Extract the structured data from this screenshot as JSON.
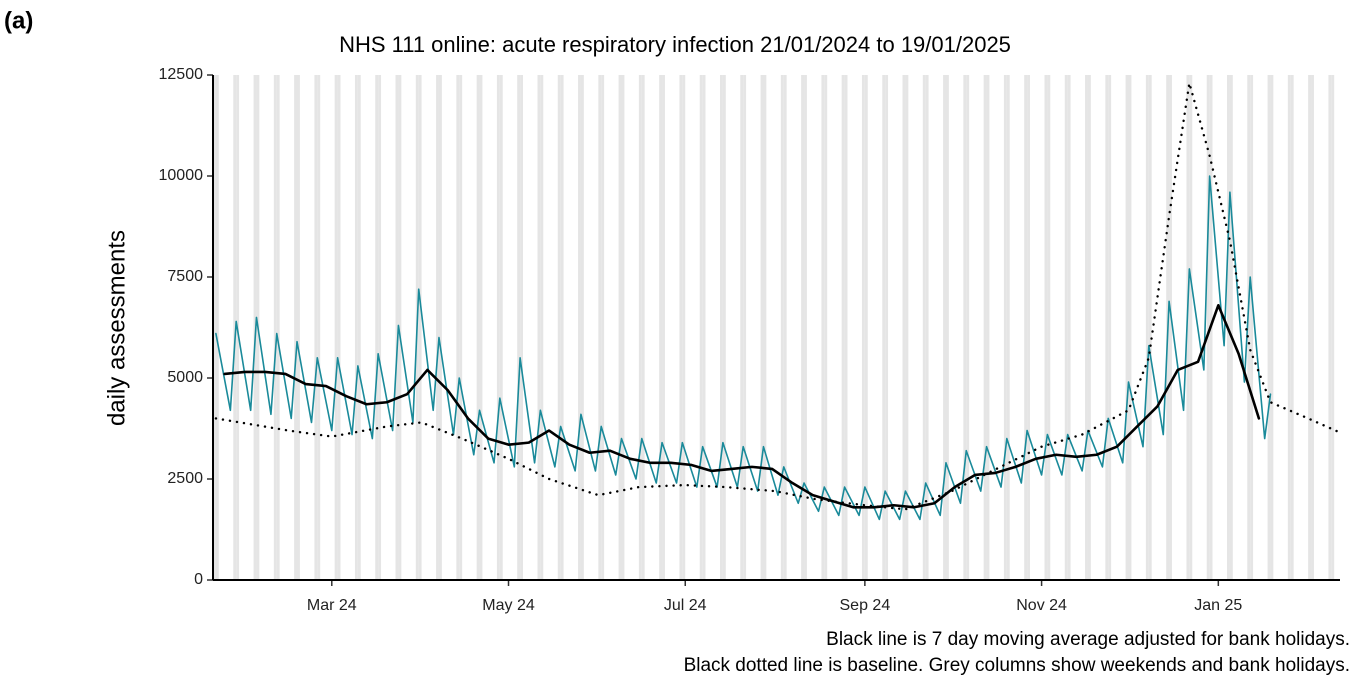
{
  "chart_data": {
    "type": "line",
    "panel_label": "(a)",
    "title": "NHS 111 online: acute respiratory infection 21/01/2024 to 19/01/2025",
    "ylabel": "daily assessments",
    "notes": [
      "Black line is 7 day moving average adjusted for bank holidays.",
      "Black dotted line is baseline. Grey columns show weekends and bank holidays."
    ],
    "xlim": [
      "2024-01-20",
      "2025-02-12"
    ],
    "xticks": [
      {
        "value": "2024-03-01",
        "label": "Mar 24"
      },
      {
        "value": "2024-05-01",
        "label": "May 24"
      },
      {
        "value": "2024-07-01",
        "label": "Jul 24"
      },
      {
        "value": "2024-09-01",
        "label": "Sep 24"
      },
      {
        "value": "2024-11-01",
        "label": "Nov 24"
      },
      {
        "value": "2025-01-01",
        "label": "Jan 25"
      }
    ],
    "ylim": [
      0,
      12500
    ],
    "yticks": [
      0,
      2500,
      5000,
      7500,
      10000,
      12500
    ],
    "grid": false,
    "weekend_color": "#e5e5e5",
    "series": [
      {
        "color": "#1a8a9a",
        "style": "solid",
        "width": 1.6,
        "x": [
          "2024-01-21",
          "2024-01-26",
          "2024-01-28",
          "2024-02-02",
          "2024-02-04",
          "2024-02-09",
          "2024-02-11",
          "2024-02-16",
          "2024-02-18",
          "2024-02-23",
          "2024-02-25",
          "2024-03-01",
          "2024-03-03",
          "2024-03-08",
          "2024-03-10",
          "2024-03-15",
          "2024-03-17",
          "2024-03-22",
          "2024-03-24",
          "2024-03-29",
          "2024-03-31",
          "2024-04-05",
          "2024-04-07",
          "2024-04-12",
          "2024-04-14",
          "2024-04-19",
          "2024-04-21",
          "2024-04-26",
          "2024-04-28",
          "2024-05-03",
          "2024-05-05",
          "2024-05-10",
          "2024-05-12",
          "2024-05-17",
          "2024-05-19",
          "2024-05-24",
          "2024-05-26",
          "2024-05-31",
          "2024-06-02",
          "2024-06-07",
          "2024-06-09",
          "2024-06-14",
          "2024-06-16",
          "2024-06-21",
          "2024-06-23",
          "2024-06-28",
          "2024-06-30",
          "2024-07-05",
          "2024-07-07",
          "2024-07-12",
          "2024-07-14",
          "2024-07-19",
          "2024-07-21",
          "2024-07-26",
          "2024-07-28",
          "2024-08-02",
          "2024-08-04",
          "2024-08-09",
          "2024-08-11",
          "2024-08-16",
          "2024-08-18",
          "2024-08-23",
          "2024-08-25",
          "2024-08-30",
          "2024-09-01",
          "2024-09-06",
          "2024-09-08",
          "2024-09-13",
          "2024-09-15",
          "2024-09-20",
          "2024-09-22",
          "2024-09-27",
          "2024-09-29",
          "2024-10-04",
          "2024-10-06",
          "2024-10-11",
          "2024-10-13",
          "2024-10-18",
          "2024-10-20",
          "2024-10-25",
          "2024-10-27",
          "2024-11-01",
          "2024-11-03",
          "2024-11-08",
          "2024-11-10",
          "2024-11-15",
          "2024-11-17",
          "2024-11-22",
          "2024-11-24",
          "2024-11-29",
          "2024-12-01",
          "2024-12-06",
          "2024-12-08",
          "2024-12-13",
          "2024-12-15",
          "2024-12-20",
          "2024-12-22",
          "2024-12-27",
          "2024-12-29",
          "2025-01-03",
          "2025-01-05",
          "2025-01-10",
          "2025-01-12",
          "2025-01-17",
          "2025-01-19"
        ],
        "values": [
          6100,
          4200,
          6400,
          4200,
          6500,
          4100,
          6100,
          4000,
          5900,
          3900,
          5500,
          3700,
          5500,
          3600,
          5300,
          3500,
          5600,
          3700,
          6300,
          3900,
          7200,
          4200,
          6000,
          3600,
          5000,
          3100,
          4200,
          2900,
          4500,
          2800,
          5500,
          2900,
          4200,
          2800,
          3800,
          2700,
          4100,
          2700,
          3800,
          2600,
          3500,
          2500,
          3500,
          2400,
          3400,
          2400,
          3400,
          2300,
          3300,
          2300,
          3400,
          2300,
          3300,
          2200,
          3300,
          2100,
          2800,
          1900,
          2400,
          1700,
          2300,
          1600,
          2300,
          1600,
          2300,
          1500,
          2200,
          1500,
          2200,
          1500,
          2400,
          1600,
          2900,
          1900,
          3200,
          2200,
          3300,
          2300,
          3500,
          2400,
          3700,
          2600,
          3600,
          2600,
          3600,
          2700,
          3700,
          2800,
          4000,
          2900,
          4900,
          3300,
          5800,
          3600,
          6900,
          4200,
          7700,
          5200,
          10000,
          5800,
          9600,
          4900,
          7500,
          3500,
          4600
        ]
      },
      {
        "color": "#000000",
        "style": "solid",
        "width": 2.6,
        "x": [
          "2024-01-24",
          "2024-01-31",
          "2024-02-07",
          "2024-02-14",
          "2024-02-21",
          "2024-02-28",
          "2024-03-06",
          "2024-03-13",
          "2024-03-20",
          "2024-03-27",
          "2024-04-03",
          "2024-04-10",
          "2024-04-17",
          "2024-04-24",
          "2024-05-01",
          "2024-05-08",
          "2024-05-15",
          "2024-05-22",
          "2024-05-29",
          "2024-06-05",
          "2024-06-12",
          "2024-06-19",
          "2024-06-26",
          "2024-07-03",
          "2024-07-10",
          "2024-07-17",
          "2024-07-24",
          "2024-07-31",
          "2024-08-07",
          "2024-08-14",
          "2024-08-21",
          "2024-08-28",
          "2024-09-04",
          "2024-09-11",
          "2024-09-18",
          "2024-09-25",
          "2024-10-02",
          "2024-10-09",
          "2024-10-16",
          "2024-10-23",
          "2024-10-30",
          "2024-11-06",
          "2024-11-13",
          "2024-11-20",
          "2024-11-27",
          "2024-12-04",
          "2024-12-11",
          "2024-12-18",
          "2024-12-25",
          "2025-01-01",
          "2025-01-08",
          "2025-01-15"
        ],
        "values": [
          5100,
          5150,
          5150,
          5100,
          4850,
          4800,
          4550,
          4350,
          4400,
          4600,
          5200,
          4700,
          4000,
          3500,
          3350,
          3400,
          3700,
          3350,
          3150,
          3200,
          3000,
          2900,
          2900,
          2850,
          2700,
          2750,
          2800,
          2750,
          2400,
          2100,
          1950,
          1800,
          1800,
          1850,
          1800,
          1900,
          2300,
          2600,
          2650,
          2800,
          3000,
          3100,
          3050,
          3100,
          3300,
          3800,
          4300,
          5200,
          5400,
          6800,
          5600,
          4000
        ]
      },
      {
        "color": "#000000",
        "style": "dotted",
        "width": 2.4,
        "x": [
          "2024-01-21",
          "2024-02-15",
          "2024-03-01",
          "2024-03-20",
          "2024-04-01",
          "2024-04-15",
          "2024-05-01",
          "2024-05-15",
          "2024-06-01",
          "2024-06-15",
          "2024-07-01",
          "2024-07-15",
          "2024-08-01",
          "2024-08-15",
          "2024-09-01",
          "2024-09-15",
          "2024-10-01",
          "2024-10-15",
          "2024-11-01",
          "2024-11-15",
          "2024-12-01",
          "2024-12-08",
          "2024-12-15",
          "2024-12-22",
          "2024-12-29",
          "2025-01-05",
          "2025-01-12",
          "2025-01-19",
          "2025-02-01",
          "2025-02-12"
        ],
        "values": [
          4000,
          3700,
          3550,
          3800,
          3900,
          3500,
          3000,
          2500,
          2100,
          2300,
          2350,
          2300,
          2200,
          2000,
          1850,
          1750,
          2200,
          2700,
          3300,
          3600,
          4200,
          5500,
          9000,
          12300,
          10500,
          8400,
          5700,
          4400,
          4000,
          3650
        ]
      }
    ]
  }
}
